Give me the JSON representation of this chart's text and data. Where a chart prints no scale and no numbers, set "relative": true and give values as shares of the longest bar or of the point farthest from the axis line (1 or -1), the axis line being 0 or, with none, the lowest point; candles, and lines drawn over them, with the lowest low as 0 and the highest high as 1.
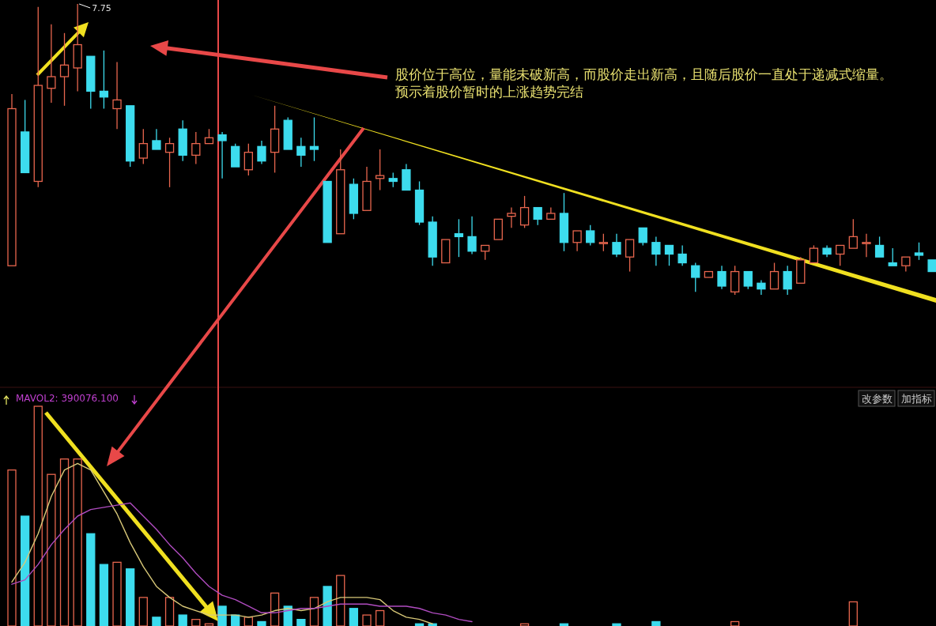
{
  "chart_data": [
    {
      "type": "candlestick",
      "relative": true,
      "categories": [
        null,
        null,
        null,
        null,
        null,
        null,
        null,
        null,
        null,
        null,
        null,
        null,
        null,
        null,
        null,
        null,
        null,
        null,
        null,
        null,
        null,
        null,
        null,
        null,
        null,
        null,
        null,
        null,
        null,
        null,
        null,
        null,
        null,
        null,
        null,
        null,
        null,
        null,
        null,
        null,
        null,
        null,
        null,
        null,
        null,
        null,
        null,
        null,
        null,
        null,
        null,
        null,
        null,
        null,
        null,
        null,
        null,
        null,
        null,
        null,
        null,
        null,
        null,
        null,
        null,
        null,
        null,
        null,
        null,
        null,
        null
      ],
      "ohlc": [
        [
          0.1,
          0.69,
          0.1,
          0.64
        ],
        [
          0.56,
          0.67,
          0.42,
          0.42
        ],
        [
          0.39,
          0.99,
          0.37,
          0.72
        ],
        [
          0.71,
          0.93,
          0.66,
          0.75
        ],
        [
          0.75,
          0.9,
          0.65,
          0.79
        ],
        [
          0.78,
          1.0,
          0.7,
          0.86
        ],
        [
          0.82,
          0.82,
          0.64,
          0.7
        ],
        [
          0.7,
          0.84,
          0.64,
          0.68
        ],
        [
          0.64,
          0.8,
          0.57,
          0.67
        ],
        [
          0.65,
          0.65,
          0.44,
          0.46
        ],
        [
          0.47,
          0.57,
          0.45,
          0.52
        ],
        [
          0.53,
          0.57,
          0.5,
          0.5
        ],
        [
          0.49,
          0.54,
          0.37,
          0.52
        ],
        [
          0.57,
          0.6,
          0.46,
          0.48
        ],
        [
          0.48,
          0.56,
          0.45,
          0.52
        ],
        [
          0.52,
          0.57,
          0.52,
          0.54
        ],
        [
          0.55,
          0.56,
          0.4,
          0.53
        ],
        [
          0.51,
          0.52,
          0.44,
          0.44
        ],
        [
          0.43,
          0.52,
          0.41,
          0.49
        ],
        [
          0.51,
          0.53,
          0.45,
          0.46
        ],
        [
          0.49,
          0.65,
          0.42,
          0.57
        ],
        [
          0.6,
          0.61,
          0.5,
          0.5
        ],
        [
          0.51,
          0.54,
          0.44,
          0.48
        ],
        [
          0.51,
          0.61,
          0.46,
          0.5
        ],
        [
          0.39,
          0.39,
          0.18,
          0.18
        ],
        [
          0.21,
          0.5,
          0.21,
          0.43
        ],
        [
          0.38,
          0.4,
          0.26,
          0.28
        ],
        [
          0.29,
          0.44,
          0.29,
          0.39
        ],
        [
          0.4,
          0.5,
          0.36,
          0.41
        ],
        [
          0.4,
          0.42,
          0.37,
          0.39
        ],
        [
          0.43,
          0.45,
          0.36,
          0.36
        ],
        [
          0.36,
          0.39,
          0.24,
          0.25
        ],
        [
          0.25,
          0.27,
          0.1,
          0.13
        ],
        [
          0.11,
          0.19,
          0.11,
          0.19
        ],
        [
          0.21,
          0.26,
          0.13,
          0.2
        ],
        [
          0.2,
          0.27,
          0.14,
          0.15
        ],
        [
          0.15,
          0.17,
          0.12,
          0.17
        ],
        [
          0.19,
          0.26,
          0.19,
          0.26
        ],
        [
          0.27,
          0.3,
          0.23,
          0.28
        ],
        [
          0.24,
          0.34,
          0.23,
          0.3
        ],
        [
          0.3,
          0.3,
          0.24,
          0.26
        ],
        [
          0.26,
          0.3,
          0.26,
          0.28
        ],
        [
          0.28,
          0.35,
          0.15,
          0.18
        ],
        [
          0.18,
          0.22,
          0.15,
          0.22
        ],
        [
          0.22,
          0.24,
          0.17,
          0.18
        ],
        [
          0.18,
          0.21,
          0.15,
          0.18
        ],
        [
          0.18,
          0.21,
          0.13,
          0.14
        ],
        [
          0.13,
          0.19,
          0.08,
          0.19
        ],
        [
          0.23,
          0.23,
          0.17,
          0.18
        ],
        [
          0.18,
          0.2,
          0.1,
          0.14
        ],
        [
          0.17,
          0.17,
          0.1,
          0.14
        ],
        [
          0.14,
          0.17,
          0.1,
          0.11
        ],
        [
          0.1,
          0.11,
          0.01,
          0.06
        ],
        [
          0.06,
          0.08,
          0.06,
          0.08
        ],
        [
          0.08,
          0.1,
          0.02,
          0.03
        ],
        [
          0.01,
          0.1,
          0.0,
          0.08
        ],
        [
          0.08,
          0.08,
          0.02,
          0.03
        ],
        [
          0.04,
          0.05,
          0.0,
          0.02
        ],
        [
          0.02,
          0.11,
          0.02,
          0.08
        ],
        [
          0.08,
          0.1,
          0.0,
          0.02
        ],
        [
          0.04,
          0.13,
          0.04,
          0.12
        ],
        [
          0.11,
          0.17,
          0.11,
          0.16
        ],
        [
          0.16,
          0.17,
          0.13,
          0.14
        ],
        [
          0.14,
          0.17,
          0.1,
          0.17
        ],
        [
          0.16,
          0.26,
          0.16,
          0.2
        ],
        [
          0.18,
          0.21,
          0.13,
          0.18
        ],
        [
          0.17,
          0.2,
          0.13,
          0.13
        ],
        [
          0.11,
          0.16,
          0.1,
          0.1
        ],
        [
          0.1,
          0.13,
          0.08,
          0.13
        ],
        [
          0.144,
          0.18,
          0.12,
          0.136
        ],
        [
          0.12,
          0.12,
          0.08,
          0.08
        ]
      ],
      "colors": [
        "#e8664e",
        "#3ddcee",
        "#e8664e",
        "#e8664e",
        "#e8664e",
        "#e8664e",
        "#3ddcee",
        "#3ddcee",
        "#e8664e",
        "#3ddcee",
        "#e8664e",
        "#3ddcee",
        "#e8664e",
        "#3ddcee",
        "#e8664e",
        "#e8664e",
        "#3ddcee",
        "#3ddcee",
        "#e8664e",
        "#3ddcee",
        "#e8664e",
        "#3ddcee",
        "#3ddcee",
        "#3ddcee",
        "#3ddcee",
        "#e8664e",
        "#3ddcee",
        "#e8664e",
        "#e8664e",
        "#3ddcee",
        "#3ddcee",
        "#3ddcee",
        "#3ddcee",
        "#e8664e",
        "#3ddcee",
        "#3ddcee",
        "#e8664e",
        "#e8664e",
        "#e8664e",
        "#e8664e",
        "#3ddcee",
        "#e8664e",
        "#3ddcee",
        "#e8664e",
        "#3ddcee",
        "#e8664e",
        "#3ddcee",
        "#e8664e",
        "#3ddcee",
        "#3ddcee",
        "#3ddcee",
        "#3ddcee",
        "#3ddcee",
        "#e8664e",
        "#3ddcee",
        "#e8664e",
        "#3ddcee",
        "#3ddcee",
        "#e8664e",
        "#3ddcee",
        "#e8664e",
        "#e8664e",
        "#3ddcee",
        "#e8664e",
        "#e8664e",
        "#e8664e",
        "#3ddcee",
        "#3ddcee",
        "#e8664e",
        "#3ddcee",
        "#3ddcee"
      ],
      "annotations": [
        "7.75",
        "股价位于高位，量能未破新高，而股价走出新高，且随后股价一直处于递减式缩量。预示着股价暂时的上涨趋势完结"
      ]
    },
    {
      "type": "bar",
      "relative": true,
      "categories": [
        null,
        null,
        null,
        null,
        null,
        null,
        null,
        null,
        null,
        null,
        null,
        null,
        null,
        null,
        null,
        null,
        null,
        null,
        null,
        null,
        null,
        null,
        null,
        null,
        null,
        null,
        null,
        null,
        null,
        null,
        null,
        null,
        null,
        null,
        null,
        null,
        null,
        null,
        null,
        null,
        null,
        null,
        null,
        null,
        null,
        null,
        null,
        null,
        null,
        null,
        null,
        null,
        null,
        null,
        null,
        null,
        null,
        null,
        null,
        null,
        null,
        null,
        null,
        null,
        null,
        null,
        null,
        null,
        null,
        null,
        null
      ],
      "series": [
        {
          "type": "bar",
          "values": [
            0.71,
            0.5,
            1.0,
            0.69,
            0.76,
            0.76,
            0.42,
            0.28,
            0.29,
            0.26,
            0.13,
            0.04,
            0.13,
            0.05,
            0.03,
            0.01,
            0.09,
            0.05,
            0.04,
            0.02,
            0.15,
            0.09,
            0.03,
            0.13,
            0.18,
            0.23,
            0.08,
            0.05,
            0.07,
            null,
            null,
            0.01,
            0.01,
            null,
            null,
            null,
            null,
            null,
            null,
            0.01,
            null,
            null,
            0.01,
            null,
            null,
            null,
            0.01,
            null,
            null,
            0.02,
            null,
            null,
            null,
            null,
            null,
            0.02,
            null,
            null,
            null,
            null,
            null,
            null,
            null,
            null,
            0.11,
            null,
            null,
            null,
            null,
            null,
            null
          ],
          "colors": [
            "#e8664e",
            "#3ddcee",
            "#e8664e",
            "#e8664e",
            "#e8664e",
            "#e8664e",
            "#3ddcee",
            "#3ddcee",
            "#e8664e",
            "#3ddcee",
            "#e8664e",
            "#3ddcee",
            "#e8664e",
            "#3ddcee",
            "#e8664e",
            "#e8664e",
            "#3ddcee",
            "#3ddcee",
            "#e8664e",
            "#3ddcee",
            "#e8664e",
            "#3ddcee",
            "#3ddcee",
            "#e8664e",
            "#3ddcee",
            "#e8664e",
            "#3ddcee",
            "#e8664e",
            "#e8664e",
            null,
            null,
            "#3ddcee",
            "#3ddcee",
            null,
            null,
            null,
            null,
            null,
            null,
            "#e8664e",
            null,
            null,
            "#3ddcee",
            null,
            null,
            null,
            "#3ddcee",
            null,
            null,
            "#3ddcee",
            null,
            null,
            null,
            null,
            null,
            "#e8664e",
            null,
            null,
            null,
            null,
            null,
            null,
            null,
            null,
            "#e8664e",
            null,
            null,
            null,
            null,
            null,
            null
          ]
        },
        {
          "type": "line",
          "color": "#d8c878",
          "values": [
            0.2,
            0.29,
            0.42,
            0.59,
            0.71,
            0.74,
            0.71,
            0.61,
            0.51,
            0.38,
            0.27,
            0.18,
            0.13,
            0.09,
            0.07,
            0.05,
            0.05,
            0.05,
            0.04,
            0.05,
            0.07,
            0.08,
            0.07,
            0.08,
            0.11,
            0.13,
            0.13,
            0.13,
            0.12,
            0.07,
            0.04,
            0.03,
            0.01,
            null,
            null,
            null,
            null,
            null,
            null,
            null,
            null,
            null,
            null,
            null,
            null,
            null,
            null,
            null,
            null,
            null,
            null,
            null,
            null,
            null,
            null,
            null,
            null,
            null,
            null,
            null,
            null,
            null,
            null,
            null,
            null,
            null,
            null,
            null,
            null,
            null,
            null
          ]
        },
        {
          "type": "line",
          "color": "#b04cc0",
          "values": [
            0.19,
            0.21,
            0.28,
            0.37,
            0.44,
            0.5,
            0.53,
            0.54,
            0.55,
            0.56,
            0.5,
            0.44,
            0.37,
            0.31,
            0.24,
            0.18,
            0.14,
            0.12,
            0.09,
            0.06,
            0.06,
            0.07,
            0.08,
            0.08,
            0.09,
            0.1,
            0.1,
            0.1,
            0.09,
            0.09,
            0.09,
            0.08,
            0.06,
            0.05,
            0.03,
            0.02,
            null,
            null,
            null,
            null,
            null,
            null,
            null,
            null,
            null,
            null,
            null,
            null,
            null,
            null,
            null,
            null,
            null,
            null,
            null,
            null,
            null,
            null,
            null,
            null,
            null,
            null,
            null,
            null,
            null,
            null,
            null,
            null,
            null,
            null,
            null
          ]
        }
      ],
      "annotations": [
        "MAVOL2: 390076.100",
        "改参数",
        "加指标"
      ]
    }
  ]
}
